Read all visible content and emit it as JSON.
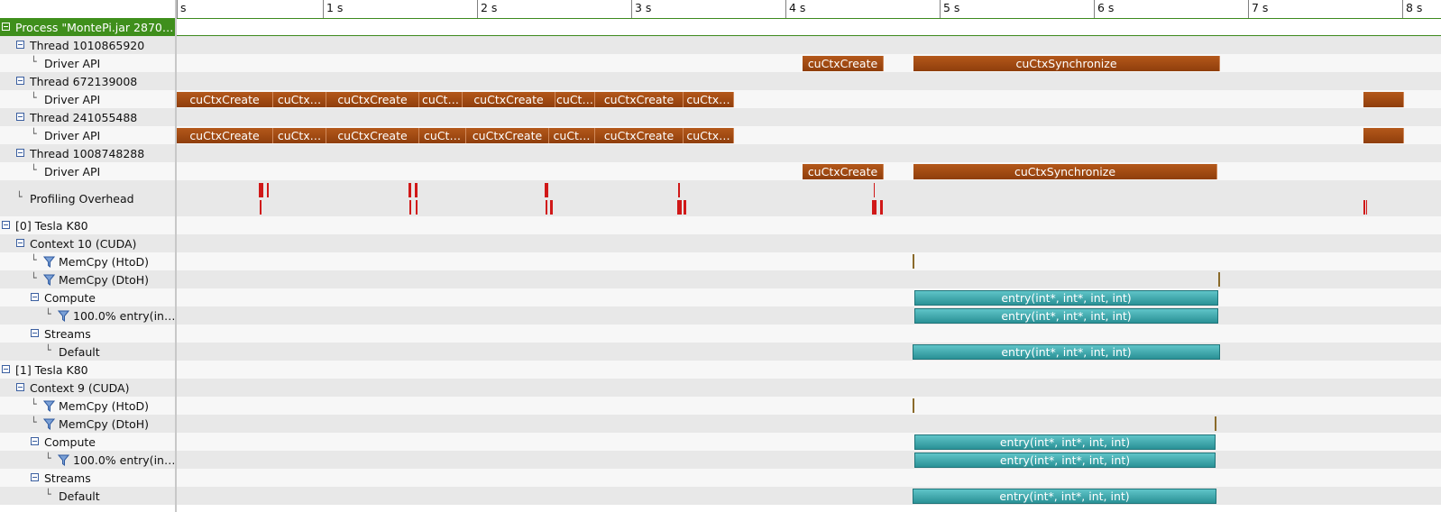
{
  "tree": {
    "process": "Process \"MontePi.jar 2870…",
    "rows": [
      {
        "label": "Thread 1010865920"
      },
      {
        "label": "Driver API"
      },
      {
        "label": "Thread 672139008"
      },
      {
        "label": "Driver API"
      },
      {
        "label": "Thread 241055488"
      },
      {
        "label": "Driver API"
      },
      {
        "label": "Thread 1008748288"
      },
      {
        "label": "Driver API"
      },
      {
        "label": "Profiling Overhead"
      },
      {
        "label": "[0] Tesla K80"
      },
      {
        "label": "Context 10 (CUDA)"
      },
      {
        "label": "MemCpy (HtoD)"
      },
      {
        "label": "MemCpy (DtoH)"
      },
      {
        "label": "Compute"
      },
      {
        "label": "100.0% entry(in…"
      },
      {
        "label": "Streams"
      },
      {
        "label": "Default"
      },
      {
        "label": "[1] Tesla K80"
      },
      {
        "label": "Context 9 (CUDA)"
      },
      {
        "label": "MemCpy (HtoD)"
      },
      {
        "label": "MemCpy (DtoH)"
      },
      {
        "label": "Compute"
      },
      {
        "label": "100.0% entry(in…"
      },
      {
        "label": "Streams"
      },
      {
        "label": "Default"
      }
    ]
  },
  "ruler": {
    "ticks": [
      "s",
      "1 s",
      "2 s",
      "3 s",
      "4 s",
      "5 s",
      "6 s",
      "7 s",
      "8 s"
    ]
  },
  "segments": {
    "cuCtxCreate": "cuCtxCreate",
    "cuCtxSynchronize": "cuCtxSynchronize",
    "cuCtx_short": "cuCtx…",
    "cuCt_short": "cuCt…",
    "kernel": "entry(int*, int*, int, int)"
  },
  "colors": {
    "process_green": "#3f8f1c",
    "driver_api": "#a04a12",
    "kernel": "#3aa7ad",
    "overhead": "#d01818"
  }
}
